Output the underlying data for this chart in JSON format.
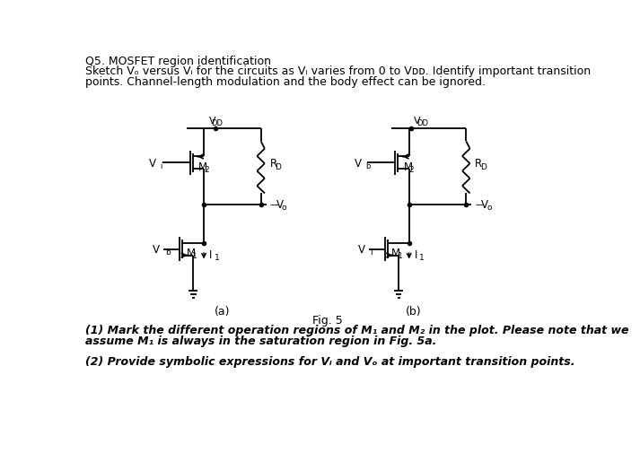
{
  "bg_color": "#ffffff",
  "text_color": "#000000",
  "header1": "Q5. MOSFET region identification",
  "header2": "Sketch Vₒ versus Vᵢ for the circuits as Vᵢ varies from 0 to Vᴅᴅ. Identify important transition",
  "header3": "points. Channel-length modulation and the body effect can be ignored.",
  "footer1": "(1) Mark the different operation regions of M₁ and M₂ in the plot. Please note that we",
  "footer2": "assume M₁ is always in the saturation region in Fig. 5a.",
  "footer3": "(2) Provide symbolic expressions for Vᵢ and Vₒ at important transition points.",
  "fig_label": "Fig. 5",
  "circ_a_label": "(a)",
  "circ_b_label": "(b)",
  "circ_a": {
    "vdd_label": "V",
    "vdd_sub": "DD",
    "m2_label": "M",
    "m2_sub": "2",
    "m1_label": "M",
    "m1_sub": "1",
    "rd_label": "R",
    "rd_sub": "D",
    "vo_label": "V",
    "vo_sub": "o",
    "vi_label": "V",
    "vi_sub": "i",
    "vb_label": "V",
    "vb_sub": "b",
    "i1_label": "I",
    "i1_sub": "1"
  },
  "circ_b": {
    "vdd_label": "V",
    "vdd_sub": "DD",
    "m2_label": "M",
    "m2_sub": "2",
    "m1_label": "M",
    "m1_sub": "1",
    "rd_label": "R",
    "rd_sub": "D",
    "vo_label": "V",
    "vo_sub": "o",
    "vb_label": "V",
    "vb_sub": "b",
    "vi_label": "V",
    "vi_sub": "i",
    "i1_label": "I",
    "i1_sub": "1"
  }
}
